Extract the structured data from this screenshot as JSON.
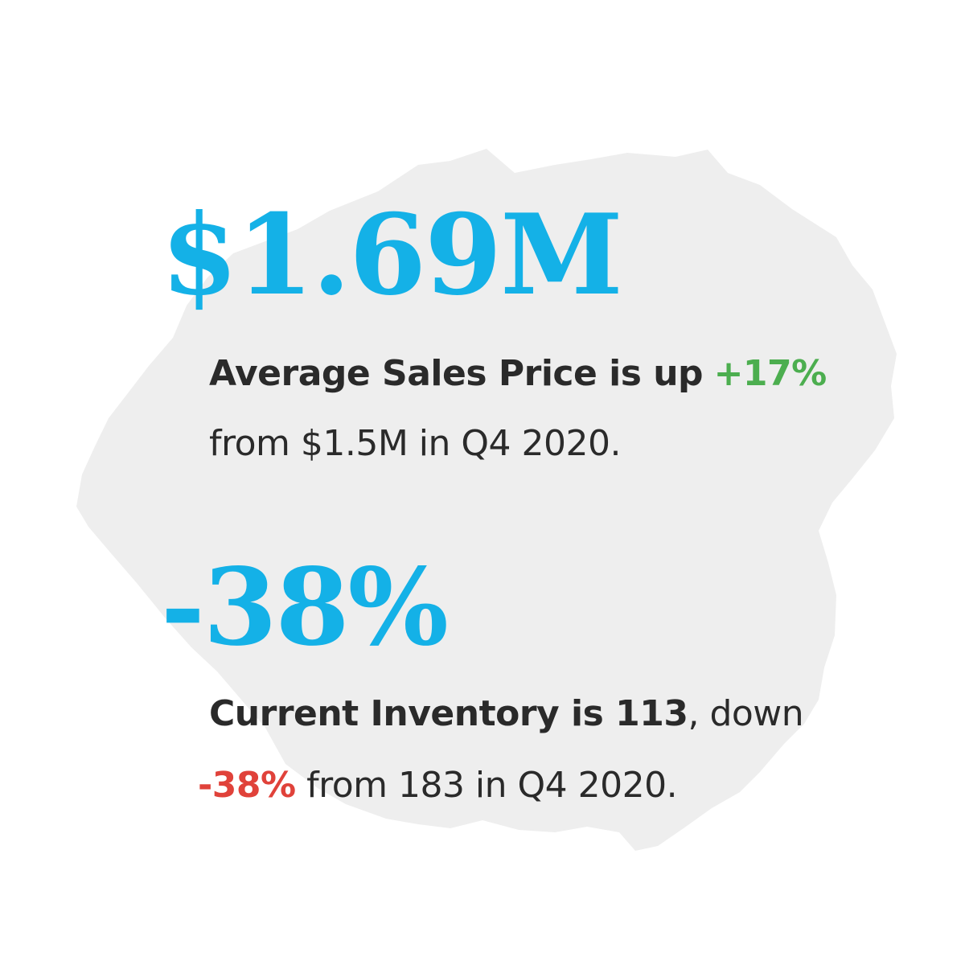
{
  "colors": {
    "accent_blue": "#14b1e7",
    "positive_green": "#4cae4f",
    "negative_red": "#e0423a",
    "text_dark": "#2a2a2a",
    "island_gray": "#eeeeee"
  },
  "background_shape": "island-silhouette",
  "price": {
    "value": "$1.69M",
    "label_bold": "Average Sales Price is up",
    "change": "+17%",
    "detail": "from $1.5M in Q4 2020."
  },
  "inventory": {
    "value": "-38%",
    "label_bold": "Current Inventory is 113",
    "label_rest": ", down",
    "change": "-38%",
    "detail": "from 183 in Q4 2020."
  }
}
